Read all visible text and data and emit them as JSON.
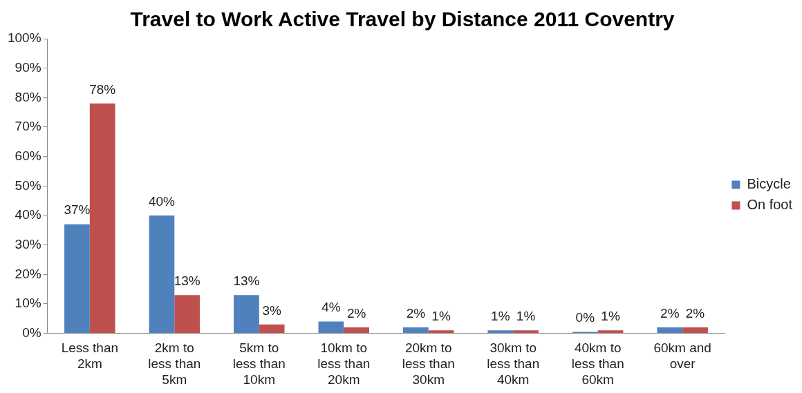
{
  "chart_data": {
    "type": "bar",
    "title": "Travel to Work Active Travel by Distance 2011 Coventry",
    "categories": [
      "Less than 2km",
      "2km to less than 5km",
      "5km to less than 10km",
      "10km to less than 20km",
      "20km to less than 30km",
      "30km to less than 40km",
      "40km to less than 60km",
      "60km and over"
    ],
    "series": [
      {
        "name": "Bicycle",
        "color": "#4f81bd",
        "values": [
          37,
          40,
          13,
          4,
          2,
          1,
          0,
          2
        ],
        "value_labels": [
          "37%",
          "40%",
          "13%",
          "4%",
          "2%",
          "1%",
          "0%",
          "2%"
        ]
      },
      {
        "name": "On foot",
        "color": "#c0504d",
        "values": [
          78,
          13,
          3,
          2,
          1,
          1,
          1,
          2
        ],
        "value_labels": [
          "78%",
          "13%",
          "3%",
          "2%",
          "1%",
          "1%",
          "1%",
          "2%"
        ]
      }
    ],
    "ylim": [
      0,
      100
    ],
    "yticks": [
      {
        "value": 0,
        "label": "0%"
      },
      {
        "value": 10,
        "label": "10%"
      },
      {
        "value": 20,
        "label": "20%"
      },
      {
        "value": 30,
        "label": "30%"
      },
      {
        "value": 40,
        "label": "40%"
      },
      {
        "value": 50,
        "label": "50%"
      },
      {
        "value": 60,
        "label": "60%"
      },
      {
        "value": 70,
        "label": "70%"
      },
      {
        "value": 80,
        "label": "80%"
      },
      {
        "value": 90,
        "label": "90%"
      },
      {
        "value": 100,
        "label": "100%"
      }
    ],
    "grid": false,
    "legend": "right"
  }
}
